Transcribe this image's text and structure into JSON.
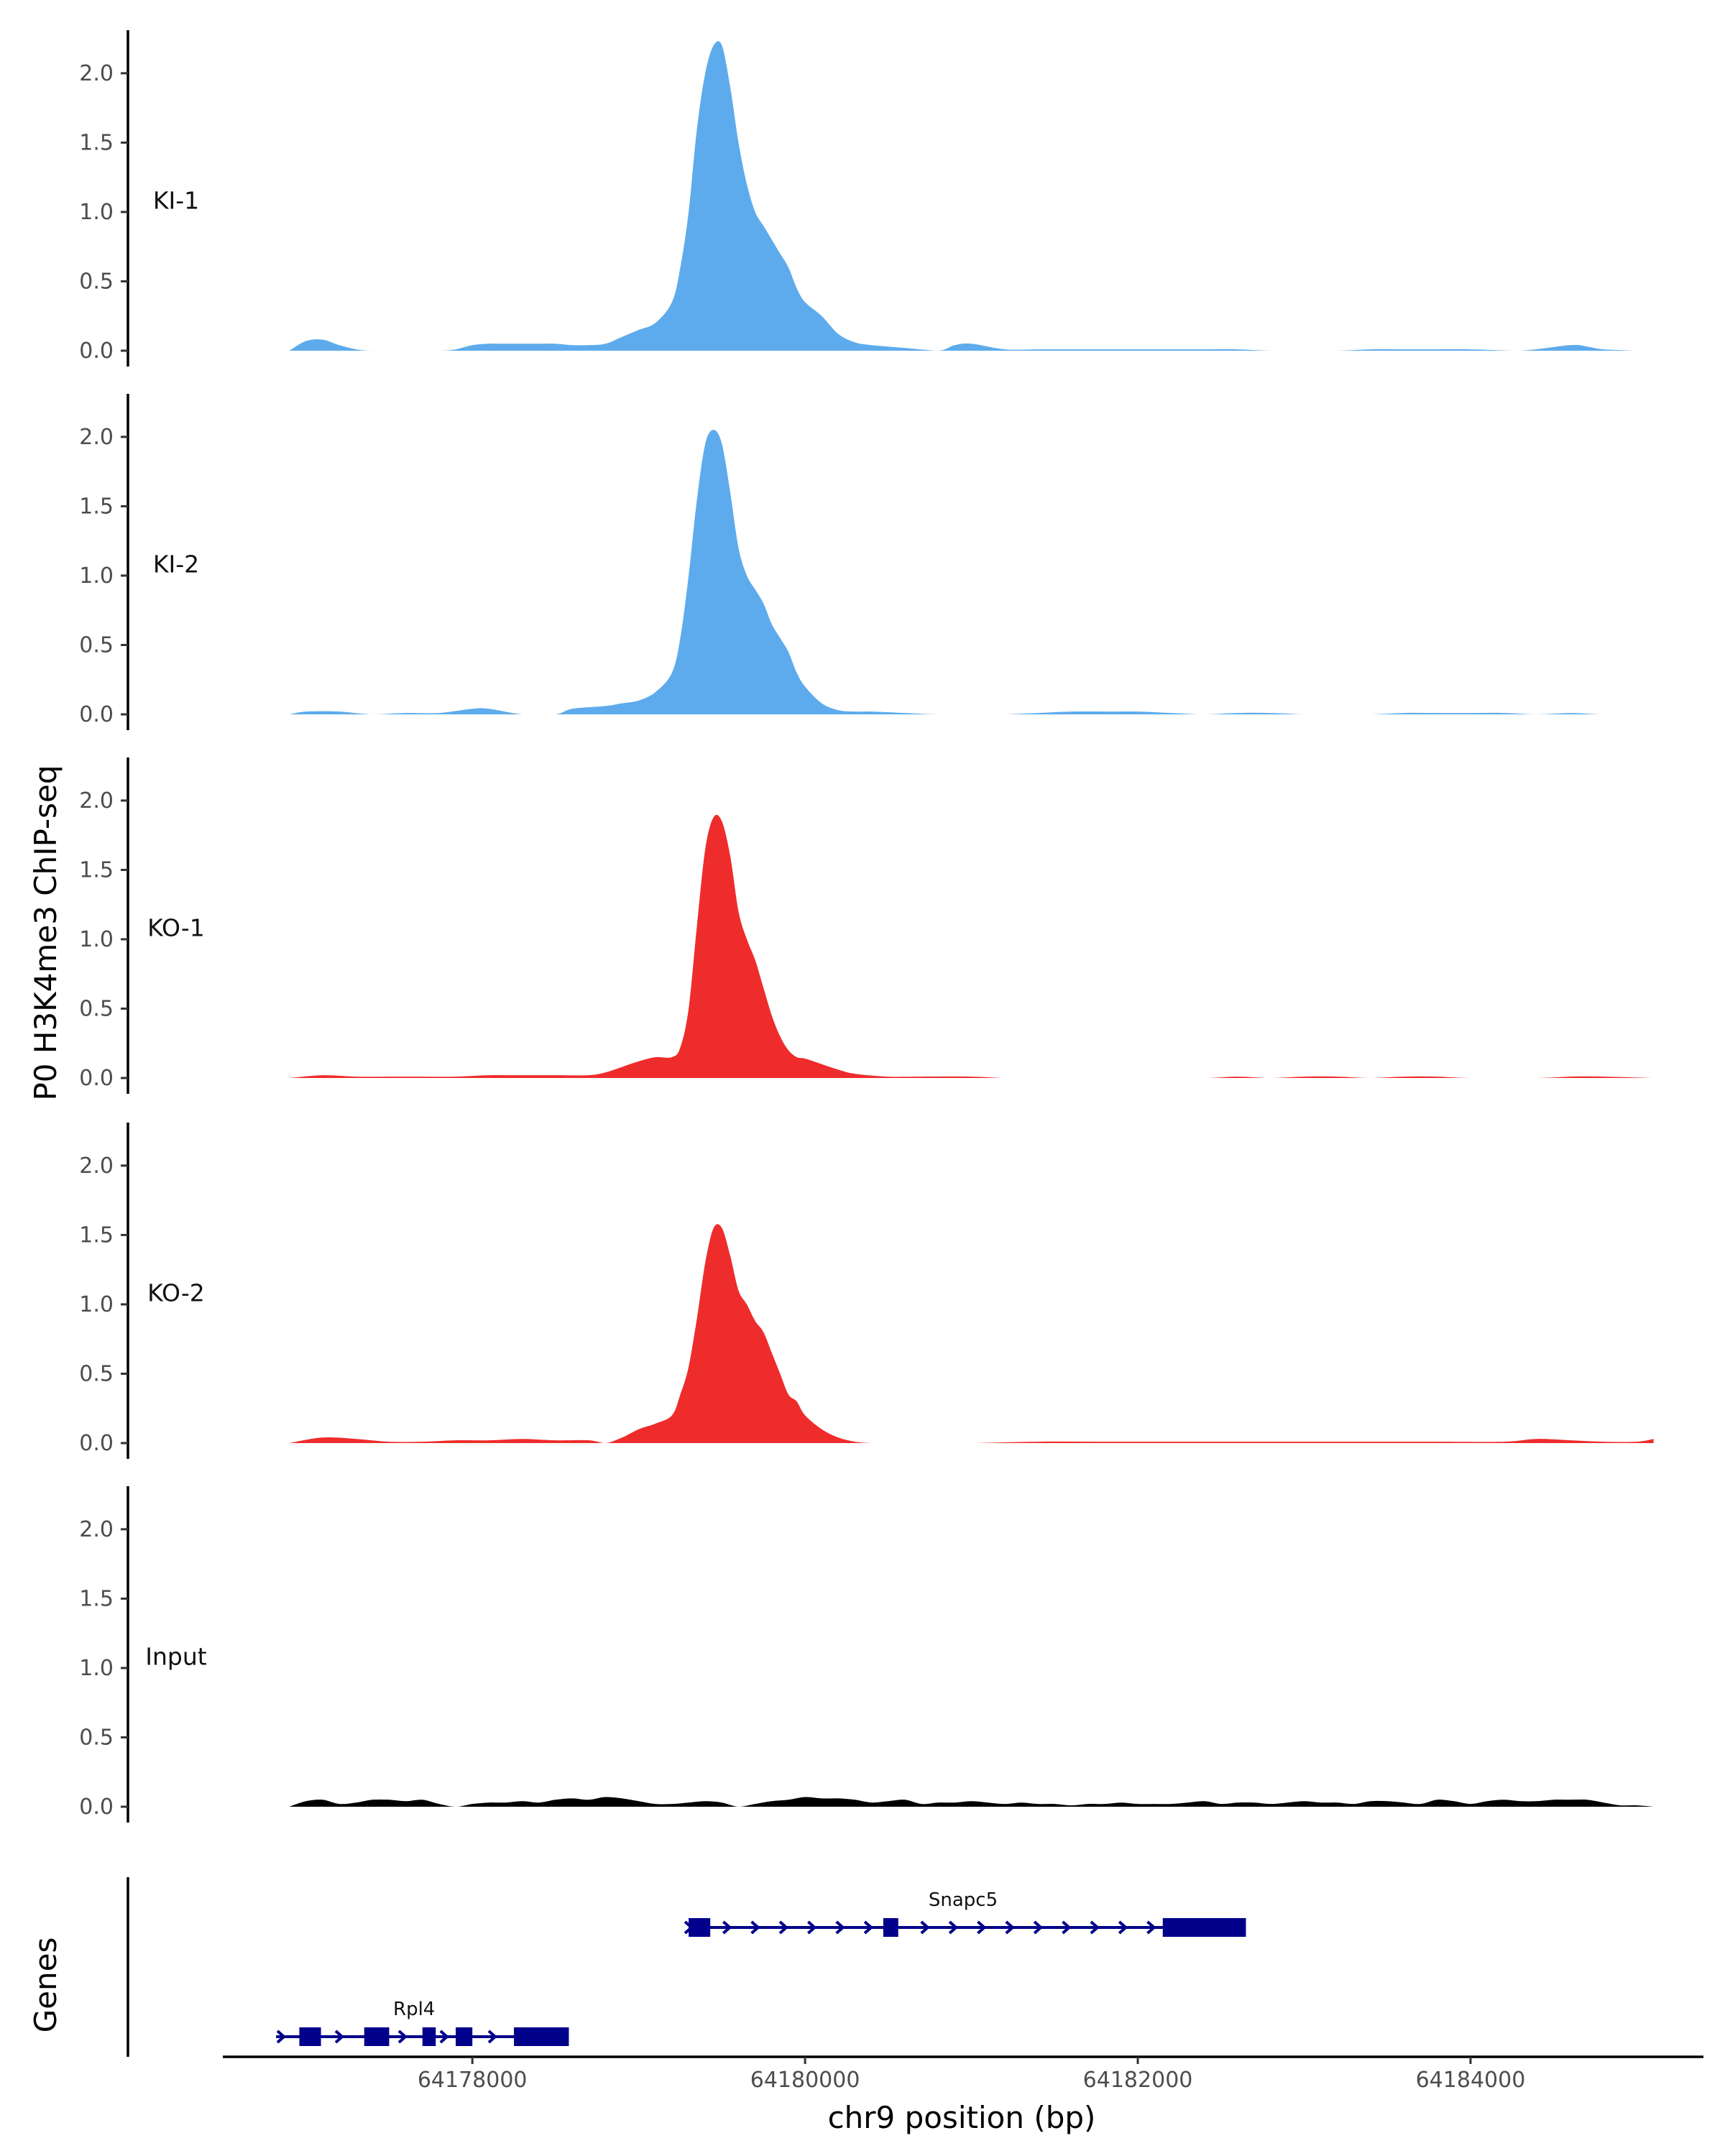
{
  "chart_data": {
    "type": "area",
    "ylabel": "P0 H3K4me3 ChIP-seq",
    "xlabel": "chr9 position (bp)",
    "ylim": [
      0,
      2.3
    ],
    "y_ticks": [
      "0.0",
      "0.5",
      "1.0",
      "1.5",
      "2.0"
    ],
    "xlim": [
      64176500,
      64185400
    ],
    "x_ticks": [
      {
        "value": 64178000,
        "label": "64178000"
      },
      {
        "value": 64180000,
        "label": "64180000"
      },
      {
        "value": 64182000,
        "label": "64182000"
      },
      {
        "value": 64184000,
        "label": "64184000"
      }
    ],
    "genes_label": "Genes",
    "tracks": [
      {
        "name": "KI-1",
        "color": "#5DABEC",
        "x": [
          64176900,
          64177000,
          64177100,
          64177200,
          64177300,
          64177400,
          64177600,
          64177800,
          64177900,
          64178000,
          64178100,
          64178200,
          64178300,
          64178400,
          64178500,
          64178600,
          64178700,
          64178800,
          64178900,
          64179000,
          64179100,
          64179200,
          64179250,
          64179300,
          64179350,
          64179400,
          64179450,
          64179500,
          64179550,
          64179600,
          64179650,
          64179700,
          64179750,
          64179800,
          64179850,
          64179900,
          64179950,
          64180000,
          64180100,
          64180200,
          64180300,
          64180400,
          64180500,
          64180600,
          64180800,
          64180900,
          64181000,
          64181200,
          64181400,
          64181600,
          64181800,
          64182000,
          64182200,
          64182400,
          64182600,
          64182800,
          64183000,
          64183200,
          64183400,
          64183600,
          64183800,
          64184000,
          64184300,
          64184600,
          64184700,
          64184800,
          64185000
        ],
        "y": [
          0.0,
          0.07,
          0.08,
          0.04,
          0.01,
          0.0,
          0.0,
          0.0,
          0.01,
          0.04,
          0.05,
          0.05,
          0.05,
          0.05,
          0.05,
          0.04,
          0.04,
          0.05,
          0.1,
          0.15,
          0.2,
          0.35,
          0.6,
          1.0,
          1.6,
          2.0,
          2.2,
          2.2,
          1.9,
          1.5,
          1.2,
          1.0,
          0.9,
          0.8,
          0.7,
          0.6,
          0.45,
          0.35,
          0.25,
          0.12,
          0.06,
          0.04,
          0.03,
          0.02,
          0.0,
          0.04,
          0.05,
          0.01,
          0.01,
          0.01,
          0.01,
          0.01,
          0.01,
          0.01,
          0.01,
          0.0,
          0.0,
          0.0,
          0.01,
          0.01,
          0.01,
          0.01,
          0.0,
          0.04,
          0.03,
          0.01,
          0.0
        ]
      },
      {
        "name": "KI-2",
        "color": "#5DABEC",
        "x": [
          64176900,
          64177000,
          64177200,
          64177400,
          64177600,
          64177800,
          64178000,
          64178100,
          64178300,
          64178500,
          64178600,
          64178800,
          64178900,
          64179000,
          64179100,
          64179200,
          64179250,
          64179300,
          64179350,
          64179400,
          64179450,
          64179500,
          64179550,
          64179600,
          64179650,
          64179700,
          64179750,
          64179800,
          64179850,
          64179900,
          64179950,
          64180000,
          64180100,
          64180200,
          64180300,
          64180400,
          64180600,
          64180800,
          64181000,
          64181200,
          64181400,
          64181600,
          64181800,
          64182000,
          64182200,
          64182400,
          64182600,
          64182800,
          64183000,
          64183200,
          64183400,
          64183600,
          64183800,
          64184000,
          64184200,
          64184400,
          64184600,
          64184800,
          64185100
        ],
        "y": [
          0.0,
          0.02,
          0.02,
          0.0,
          0.01,
          0.01,
          0.04,
          0.04,
          0.0,
          0.0,
          0.04,
          0.06,
          0.08,
          0.1,
          0.16,
          0.3,
          0.55,
          1.0,
          1.55,
          1.95,
          2.05,
          1.95,
          1.6,
          1.2,
          1.0,
          0.9,
          0.8,
          0.65,
          0.55,
          0.45,
          0.3,
          0.2,
          0.08,
          0.03,
          0.02,
          0.02,
          0.01,
          0.0,
          0.0,
          0.0,
          0.01,
          0.02,
          0.02,
          0.02,
          0.01,
          0.0,
          0.01,
          0.01,
          0.0,
          0.0,
          0.0,
          0.01,
          0.01,
          0.01,
          0.01,
          0.0,
          0.01,
          0.0,
          0.0
        ]
      },
      {
        "name": "KO-1",
        "color": "#EE2C2C",
        "x": [
          64176900,
          64177100,
          64177300,
          64177500,
          64177700,
          64177900,
          64178100,
          64178300,
          64178500,
          64178700,
          64178800,
          64178900,
          64179000,
          64179100,
          64179200,
          64179250,
          64179300,
          64179350,
          64179400,
          64179450,
          64179500,
          64179550,
          64179600,
          64179650,
          64179700,
          64179750,
          64179800,
          64179850,
          64179900,
          64179950,
          64180000,
          64180100,
          64180200,
          64180300,
          64180500,
          64180700,
          64181000,
          64181200,
          64181400,
          64182000,
          64182400,
          64182600,
          64182800,
          64183000,
          64183200,
          64183400,
          64183600,
          64183800,
          64184000,
          64184400,
          64184600,
          64184800,
          64185100
        ],
        "y": [
          0.0,
          0.02,
          0.01,
          0.01,
          0.01,
          0.01,
          0.02,
          0.02,
          0.02,
          0.02,
          0.04,
          0.08,
          0.12,
          0.15,
          0.15,
          0.22,
          0.5,
          1.1,
          1.65,
          1.88,
          1.85,
          1.6,
          1.2,
          1.0,
          0.85,
          0.65,
          0.45,
          0.3,
          0.2,
          0.15,
          0.14,
          0.1,
          0.06,
          0.03,
          0.01,
          0.01,
          0.01,
          0.0,
          0.0,
          0.0,
          0.0,
          0.01,
          0.0,
          0.01,
          0.01,
          0.0,
          0.01,
          0.01,
          0.0,
          0.0,
          0.01,
          0.01,
          0.0
        ]
      },
      {
        "name": "KO-2",
        "color": "#EE2C2C",
        "x": [
          64176900,
          64177100,
          64177300,
          64177500,
          64177700,
          64177900,
          64178100,
          64178300,
          64178500,
          64178700,
          64178800,
          64178900,
          64179000,
          64179100,
          64179200,
          64179250,
          64179300,
          64179350,
          64179400,
          64179450,
          64179500,
          64179550,
          64179600,
          64179650,
          64179700,
          64179750,
          64179800,
          64179850,
          64179900,
          64179950,
          64180000,
          64180100,
          64180200,
          64180300,
          64180400,
          64180500,
          64180600,
          64180800,
          64181000,
          64181400,
          64181800,
          64182200,
          64182600,
          64183000,
          64183400,
          64183800,
          64184200,
          64184400,
          64184600,
          64184800,
          64185000,
          64185100
        ],
        "y": [
          0.0,
          0.04,
          0.03,
          0.01,
          0.01,
          0.02,
          0.02,
          0.03,
          0.02,
          0.02,
          0.0,
          0.04,
          0.1,
          0.14,
          0.2,
          0.35,
          0.55,
          0.9,
          1.3,
          1.55,
          1.55,
          1.35,
          1.1,
          1.0,
          0.88,
          0.8,
          0.65,
          0.5,
          0.35,
          0.3,
          0.2,
          0.1,
          0.04,
          0.01,
          0.0,
          0.0,
          0.0,
          0.0,
          0.0,
          0.01,
          0.01,
          0.01,
          0.01,
          0.01,
          0.01,
          0.01,
          0.01,
          0.03,
          0.02,
          0.01,
          0.01,
          0.03
        ]
      },
      {
        "name": "Input",
        "color": "#000000",
        "x": [
          64176900,
          64177000,
          64177100,
          64177200,
          64177300,
          64177400,
          64177500,
          64177600,
          64177700,
          64177800,
          64177900,
          64178000,
          64178100,
          64178200,
          64178300,
          64178400,
          64178500,
          64178600,
          64178700,
          64178800,
          64178900,
          64179000,
          64179100,
          64179200,
          64179300,
          64179400,
          64179500,
          64179600,
          64179700,
          64179800,
          64179900,
          64180000,
          64180100,
          64180200,
          64180300,
          64180400,
          64180500,
          64180600,
          64180700,
          64180800,
          64180900,
          64181000,
          64181100,
          64181200,
          64181300,
          64181400,
          64181500,
          64181600,
          64181700,
          64181800,
          64181900,
          64182000,
          64182100,
          64182200,
          64182300,
          64182400,
          64182500,
          64182600,
          64182700,
          64182800,
          64182900,
          64183000,
          64183100,
          64183200,
          64183300,
          64183400,
          64183500,
          64183600,
          64183700,
          64183800,
          64183900,
          64184000,
          64184100,
          64184200,
          64184300,
          64184400,
          64184500,
          64184600,
          64184700,
          64184800,
          64184900,
          64185000,
          64185100
        ],
        "y": [
          0.0,
          0.04,
          0.05,
          0.02,
          0.03,
          0.05,
          0.05,
          0.04,
          0.05,
          0.02,
          0.0,
          0.02,
          0.03,
          0.03,
          0.04,
          0.03,
          0.05,
          0.06,
          0.05,
          0.07,
          0.06,
          0.04,
          0.02,
          0.02,
          0.03,
          0.04,
          0.03,
          0.0,
          0.02,
          0.04,
          0.05,
          0.07,
          0.06,
          0.06,
          0.05,
          0.03,
          0.04,
          0.05,
          0.02,
          0.03,
          0.03,
          0.04,
          0.03,
          0.02,
          0.03,
          0.02,
          0.02,
          0.01,
          0.02,
          0.02,
          0.03,
          0.02,
          0.02,
          0.02,
          0.03,
          0.04,
          0.02,
          0.03,
          0.03,
          0.02,
          0.03,
          0.04,
          0.03,
          0.03,
          0.02,
          0.04,
          0.04,
          0.03,
          0.02,
          0.05,
          0.04,
          0.02,
          0.04,
          0.05,
          0.04,
          0.04,
          0.05,
          0.05,
          0.05,
          0.03,
          0.01,
          0.01,
          0.0
        ]
      }
    ],
    "genes": [
      {
        "name": "Snapc5",
        "color": "#00008B",
        "start": 64179300,
        "end": 64182650,
        "row": 0,
        "exons": [
          [
            64179300,
            64179430
          ],
          [
            64180470,
            64180560
          ],
          [
            64182150,
            64182650
          ]
        ],
        "arrows": [
          64179300,
          64179530,
          64179700,
          64179870,
          64180040,
          64180210,
          64180380,
          64180720,
          64180890,
          64181060,
          64181230,
          64181400,
          64181570,
          64181740,
          64181910,
          64182080
        ]
      },
      {
        "name": "Rpl4",
        "color": "#00008B",
        "start": 64176820,
        "end": 64178580,
        "row": 1,
        "exons": [
          [
            64176960,
            64177090
          ],
          [
            64177350,
            64177500
          ],
          [
            64177700,
            64177780
          ],
          [
            64177900,
            64178000
          ],
          [
            64178250,
            64178580
          ]
        ],
        "arrows": [
          64176850,
          64177200,
          64177580,
          64177830,
          64178120
        ]
      }
    ]
  }
}
